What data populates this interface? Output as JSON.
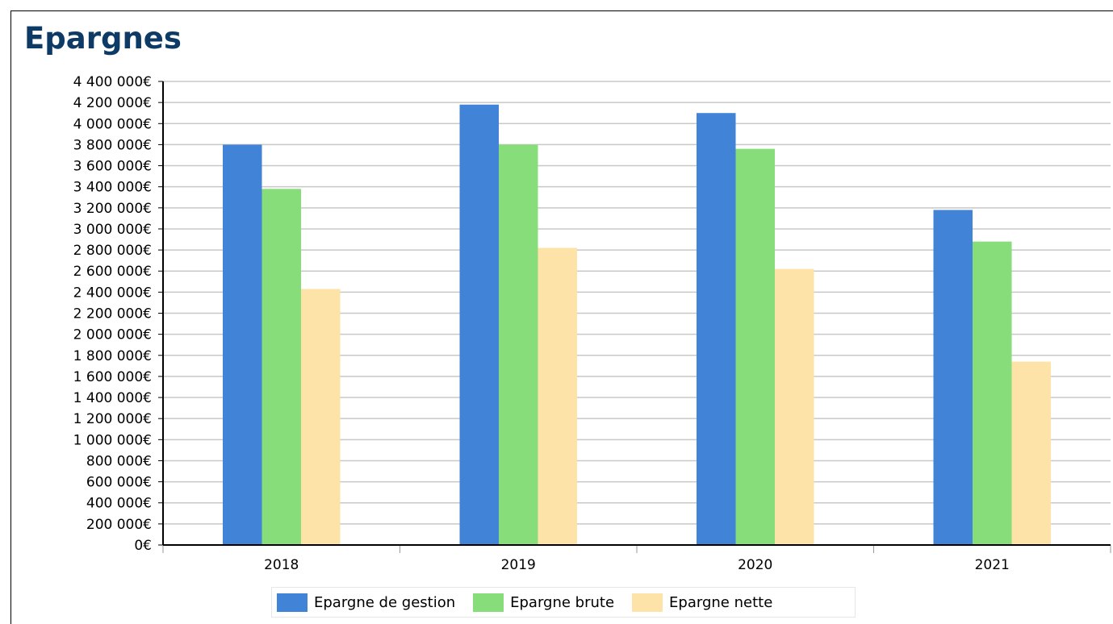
{
  "chart_data": {
    "type": "bar",
    "title": "Epargnes",
    "categories": [
      "2018",
      "2019",
      "2020",
      "2021"
    ],
    "series": [
      {
        "name": "Epargne de gestion",
        "color": "#4183d7",
        "values": [
          3800000,
          4180000,
          4100000,
          3180000
        ]
      },
      {
        "name": "Epargne brute",
        "color": "#87dd7a",
        "values": [
          3380000,
          3800000,
          3760000,
          2880000
        ]
      },
      {
        "name": "Epargne nette",
        "color": "#fde3a7",
        "values": [
          2430000,
          2820000,
          2620000,
          1740000
        ]
      }
    ],
    "ylim": [
      0,
      4400000
    ],
    "yticks": [
      "0€",
      "200 000€",
      "400 000€",
      "600 000€",
      "800 000€",
      "1 000 000€",
      "1 200 000€",
      "1 400 000€",
      "1 600 000€",
      "1 800 000€",
      "2 000 000€",
      "2 200 000€",
      "2 400 000€",
      "2 600 000€",
      "2 800 000€",
      "3 000 000€",
      "3 200 000€",
      "3 400 000€",
      "3 600 000€",
      "3 800 000€",
      "4 000 000€",
      "4 200 000€",
      "4 400 000€"
    ],
    "grid": true,
    "legend_position": "bottom"
  }
}
